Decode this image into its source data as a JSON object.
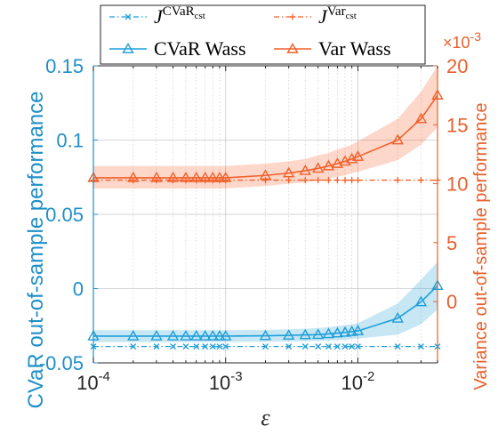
{
  "chart_data": {
    "type": "line",
    "xlabel": "ε",
    "xscale": "log",
    "xlim": [
      0.0001,
      0.04
    ],
    "x_ticks": [
      "10^-4",
      "10^-3",
      "10^-2"
    ],
    "left_axis": {
      "label": "CVaR out-of-sample performance",
      "ylim": [
        -0.05,
        0.15
      ],
      "ticks": [
        "-0.05",
        "0",
        "0.05",
        "0.1",
        "0.15"
      ],
      "color": "#1f8fc8"
    },
    "right_axis": {
      "label": "Variance out-of-sample performance",
      "scale_note": "×10^-3",
      "ylim": [
        -5.2,
        20
      ],
      "ticks": [
        "0",
        "5",
        "10",
        "15",
        "20"
      ],
      "color": "#e8602c"
    },
    "x": [
      0.0001,
      0.0002,
      0.0003,
      0.0004,
      0.0005,
      0.0006,
      0.0007,
      0.0008,
      0.0009,
      0.001,
      0.002,
      0.003,
      0.004,
      0.005,
      0.006,
      0.007,
      0.008,
      0.009,
      0.01,
      0.02,
      0.03,
      0.04
    ],
    "series": [
      {
        "name": "J CVaR cst",
        "legend_main": "J",
        "legend_sup": "CVaR",
        "legend_sub": "cst",
        "axis": "left",
        "style": "dashdot-x",
        "color": "#1f9fd8",
        "values": [
          -0.039,
          -0.039,
          -0.039,
          -0.039,
          -0.039,
          -0.039,
          -0.039,
          -0.039,
          -0.039,
          -0.039,
          -0.039,
          -0.039,
          -0.039,
          -0.039,
          -0.039,
          -0.039,
          -0.039,
          -0.039,
          -0.039,
          -0.039,
          -0.039,
          -0.039
        ]
      },
      {
        "name": "J Var cst",
        "legend_main": "J",
        "legend_sup": "Var",
        "legend_sub": "cst",
        "axis": "right",
        "style": "dashdot-plus",
        "color": "#f2602a",
        "values": [
          10.3,
          10.3,
          10.3,
          10.3,
          10.3,
          10.3,
          10.3,
          10.3,
          10.3,
          10.3,
          10.3,
          10.3,
          10.3,
          10.3,
          10.3,
          10.3,
          10.3,
          10.3,
          10.3,
          10.3,
          10.3,
          10.3
        ]
      },
      {
        "name": "CVaR Wass",
        "axis": "left",
        "style": "solid-triangle",
        "color": "#1f9fd8",
        "values": [
          -0.032,
          -0.032,
          -0.032,
          -0.032,
          -0.032,
          -0.032,
          -0.032,
          -0.032,
          -0.032,
          -0.032,
          -0.0318,
          -0.0315,
          -0.0312,
          -0.031,
          -0.0305,
          -0.03,
          -0.0295,
          -0.029,
          -0.0285,
          -0.02,
          -0.009,
          0.002
        ],
        "band_lower": [
          -0.036,
          -0.036,
          -0.036,
          -0.036,
          -0.036,
          -0.036,
          -0.036,
          -0.036,
          -0.036,
          -0.036,
          -0.0358,
          -0.0356,
          -0.0354,
          -0.0352,
          -0.035,
          -0.0347,
          -0.0344,
          -0.034,
          -0.0337,
          -0.031,
          -0.024,
          -0.014
        ],
        "band_upper": [
          -0.028,
          -0.028,
          -0.028,
          -0.028,
          -0.028,
          -0.028,
          -0.028,
          -0.028,
          -0.028,
          -0.028,
          -0.0278,
          -0.0274,
          -0.027,
          -0.0266,
          -0.026,
          -0.0253,
          -0.0246,
          -0.024,
          -0.0233,
          -0.01,
          0.006,
          0.018
        ]
      },
      {
        "name": "Var Wass",
        "axis": "right",
        "style": "solid-triangle",
        "color": "#f2602a",
        "values": [
          10.5,
          10.5,
          10.5,
          10.5,
          10.5,
          10.5,
          10.5,
          10.5,
          10.5,
          10.5,
          10.7,
          10.9,
          11.1,
          11.3,
          11.5,
          11.7,
          11.9,
          12.1,
          12.3,
          13.7,
          15.5,
          17.5
        ],
        "band_lower": [
          9.6,
          9.6,
          9.6,
          9.6,
          9.6,
          9.6,
          9.6,
          9.6,
          9.6,
          9.6,
          9.8,
          10.0,
          10.1,
          10.3,
          10.4,
          10.6,
          10.7,
          10.9,
          11.0,
          12.0,
          13.3,
          14.8
        ],
        "band_upper": [
          11.5,
          11.5,
          11.5,
          11.5,
          11.5,
          11.5,
          11.5,
          11.5,
          11.5,
          11.5,
          11.7,
          11.9,
          12.1,
          12.4,
          12.6,
          12.9,
          13.1,
          13.3,
          13.6,
          15.5,
          17.8,
          20.0
        ]
      }
    ],
    "legend": {
      "placement": "top",
      "entries": [
        "J CVaR cst",
        "J Var cst",
        "CVaR Wass",
        "Var Wass"
      ],
      "labels": [
        "CVaR Wass",
        "Var Wass"
      ]
    },
    "grid": true
  }
}
